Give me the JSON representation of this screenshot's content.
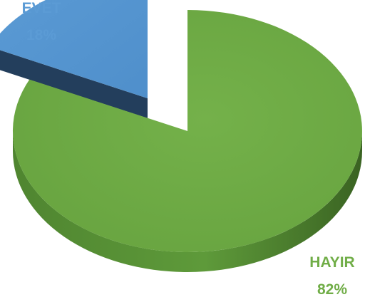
{
  "chart_data": {
    "type": "pie",
    "style": "3d-exploded",
    "slices": [
      {
        "label": "EVET",
        "value": 18,
        "display": "18%",
        "color": "#5b9bd5",
        "side_color": "#233e5c"
      },
      {
        "label": "HAYIR",
        "value": 82,
        "display": "82%",
        "color": "#70ad47",
        "side_color": "#3f6b25"
      }
    ],
    "legend": "none"
  }
}
